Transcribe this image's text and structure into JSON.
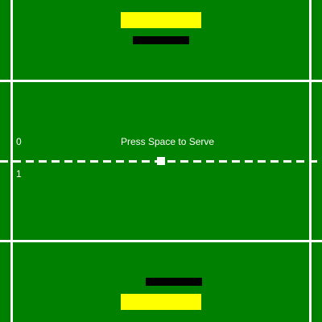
{
  "game": {
    "message": "Press Space to Serve",
    "score_top": "0",
    "score_bottom": "1"
  },
  "colors": {
    "court": "#008000",
    "lines": "#ffffff",
    "score_bar": "#ffff00",
    "paddle": "#000000",
    "ball": "#ffffff"
  }
}
